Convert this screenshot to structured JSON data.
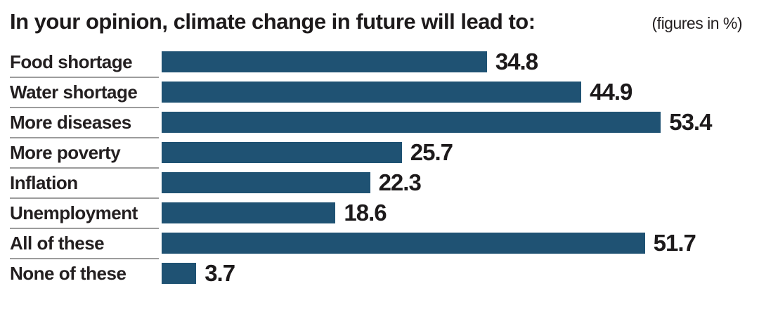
{
  "header": {
    "title": "In your opinion, climate change in future will lead to:",
    "note": "(figures in %)"
  },
  "chart_data": {
    "type": "bar",
    "orientation": "horizontal",
    "title": "In your opinion, climate change in future will lead to:",
    "subtitle": "(figures in %)",
    "categories": [
      "Food shortage",
      "Water shortage",
      "More diseases",
      "More poverty",
      "Inflation",
      "Unemployment",
      "All of these",
      "None of these"
    ],
    "values": [
      34.8,
      44.9,
      53.4,
      25.7,
      22.3,
      18.6,
      51.7,
      3.7
    ],
    "xlabel": "",
    "ylabel": "",
    "xlim": [
      0,
      55
    ],
    "unit": "%",
    "value_labels": true,
    "grid": false,
    "legend": false,
    "bar_color": "#1f5273"
  },
  "colors": {
    "bar": "#1f5273",
    "text": "#231f20",
    "separator": "#9c9c9c",
    "background": "#ffffff"
  }
}
